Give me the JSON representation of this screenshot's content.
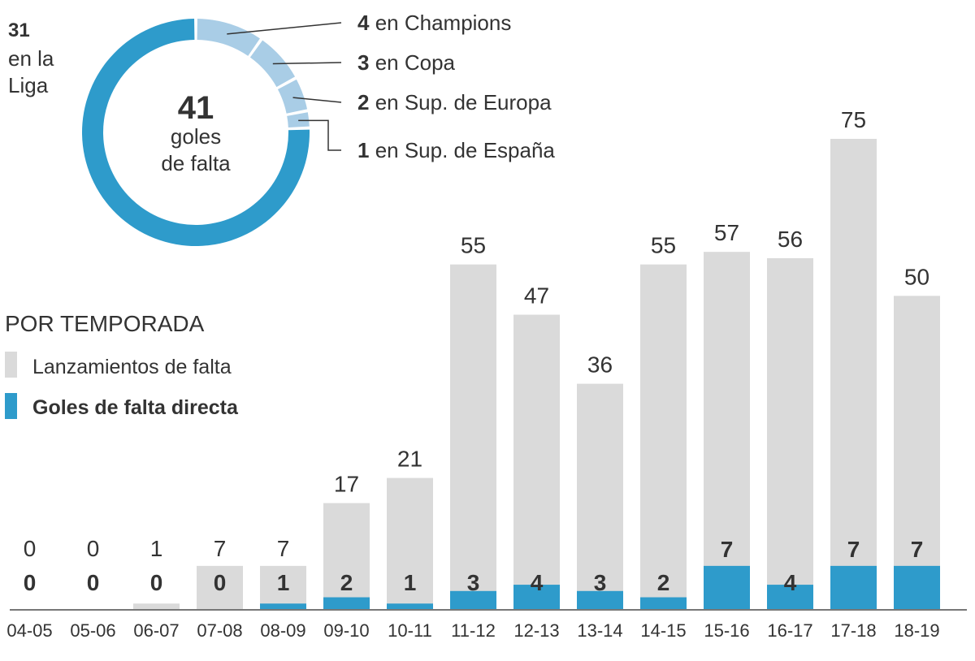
{
  "chart_data": [
    {
      "type": "pie",
      "center_value": "41",
      "center_label_line1": "goles",
      "center_label_line2": "de falta",
      "slices": [
        {
          "value": 31,
          "label_value": "31",
          "label_line1": "en la",
          "label_line2": "Liga",
          "color": "#2e9bcb"
        },
        {
          "value": 4,
          "label_value": "4",
          "label": "en Champions",
          "color": "#a9cde6"
        },
        {
          "value": 3,
          "label_value": "3",
          "label": "en Copa",
          "color": "#a9cde6"
        },
        {
          "value": 2,
          "label_value": "2",
          "label": "en Sup. de Europa",
          "color": "#a9cde6"
        },
        {
          "value": 1,
          "label_value": "1",
          "label": "en Sup. de España",
          "color": "#a9cde6"
        }
      ]
    },
    {
      "type": "bar",
      "title": "POR TEMPORADA",
      "categories": [
        "04-05",
        "05-06",
        "06-07",
        "07-08",
        "08-09",
        "09-10",
        "10-11",
        "11-12",
        "12-13",
        "13-14",
        "14-15",
        "15-16",
        "16-17",
        "17-18",
        "18-19"
      ],
      "series": [
        {
          "name": "Lanzamientos de falta",
          "color": "#dadada",
          "values": [
            0,
            0,
            1,
            7,
            7,
            17,
            21,
            55,
            47,
            36,
            55,
            57,
            56,
            75,
            50
          ]
        },
        {
          "name": "Goles de falta directa",
          "color": "#2e9bcb",
          "values": [
            0,
            0,
            0,
            0,
            1,
            2,
            1,
            3,
            4,
            3,
            2,
            7,
            4,
            7,
            7
          ]
        }
      ],
      "ylim": [
        0,
        75
      ],
      "legend_position": "top-left",
      "grid": false
    }
  ]
}
